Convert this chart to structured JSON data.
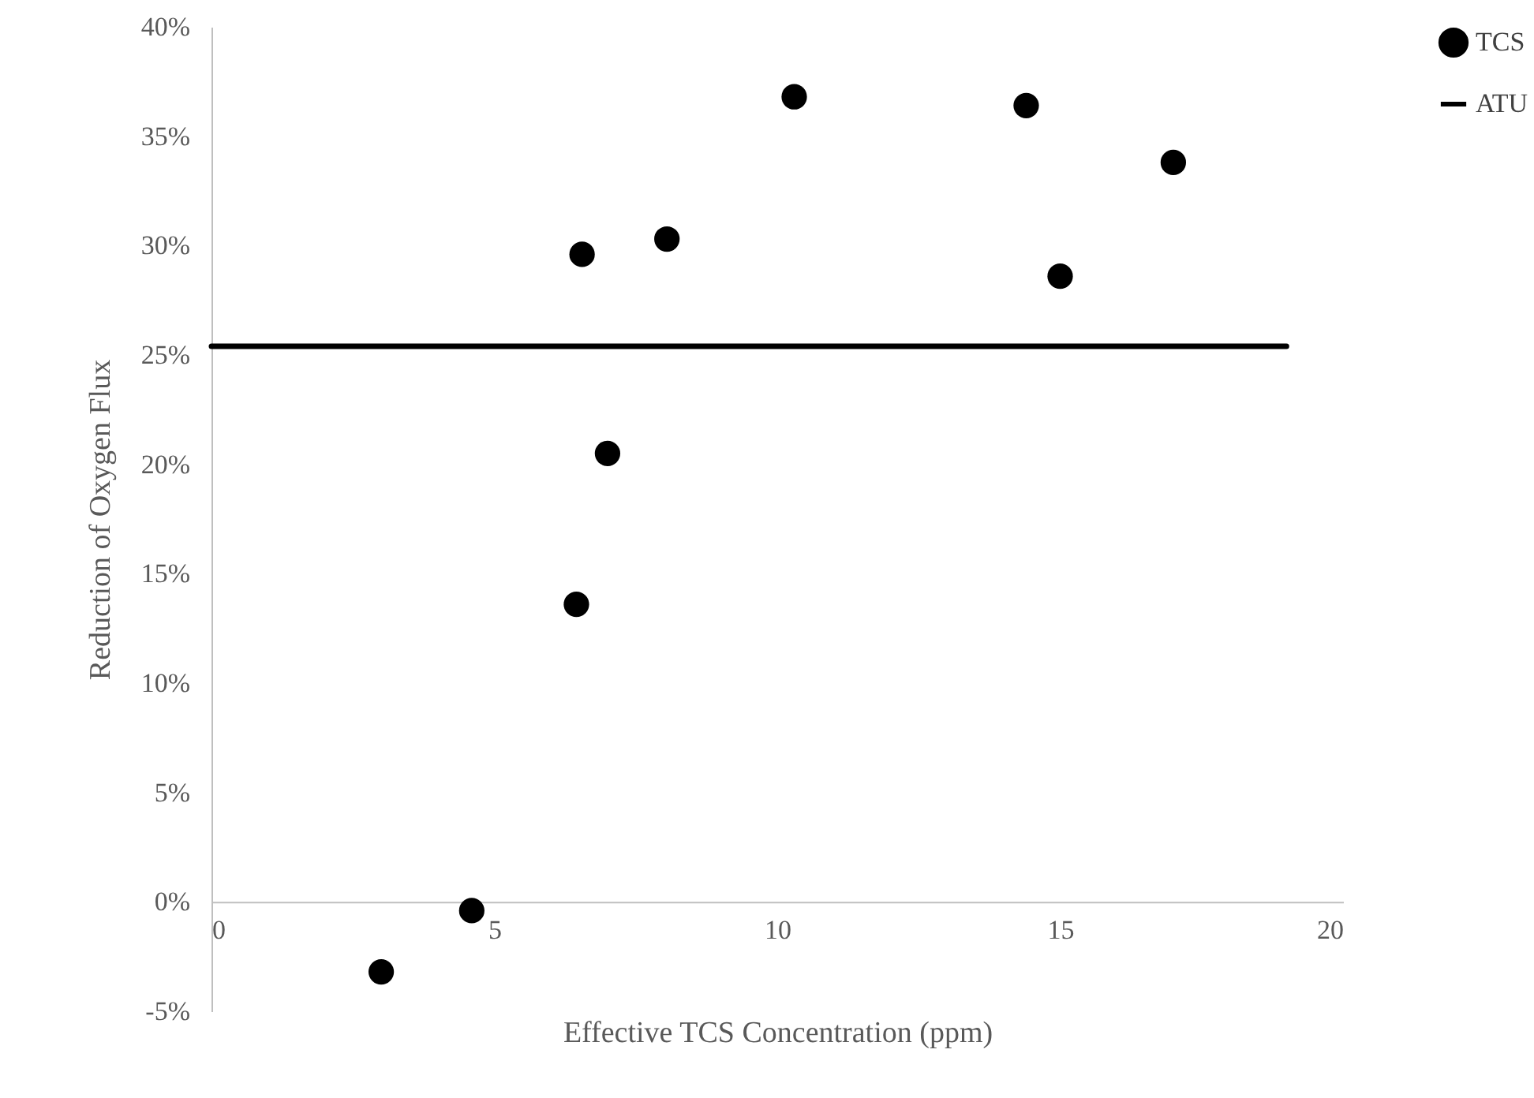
{
  "chart_data": {
    "type": "scatter",
    "xlabel": "Effective TCS Concentration (ppm)",
    "ylabel": "Reduction of Oxygen Flux",
    "xlim": [
      0,
      20
    ],
    "xticks": [
      0,
      5,
      10,
      15,
      20
    ],
    "ylim": [
      -5,
      40
    ],
    "yticks": [
      {
        "value": -5,
        "label": "-5%"
      },
      {
        "value": 0,
        "label": "0%"
      },
      {
        "value": 5,
        "label": "5%"
      },
      {
        "value": 10,
        "label": "10%"
      },
      {
        "value": 15,
        "label": "15%"
      },
      {
        "value": 20,
        "label": "20%"
      },
      {
        "value": 25,
        "label": "25%"
      },
      {
        "value": 30,
        "label": "30%"
      },
      {
        "value": 35,
        "label": "35%"
      },
      {
        "value": 40,
        "label": "40%"
      }
    ],
    "grid": false,
    "legend": "right",
    "series": [
      {
        "name": "TCS",
        "marker": "circle",
        "color": "#000000",
        "x": [
          3.0,
          4.6,
          6.45,
          7.0,
          6.55,
          8.05,
          10.3,
          14.4,
          15.0,
          17.0
        ],
        "values": [
          -3.2,
          -0.4,
          13.6,
          20.5,
          29.6,
          30.3,
          36.8,
          36.4,
          28.6,
          33.8
        ]
      },
      {
        "name": "ATU",
        "type": "line",
        "line_style": "solid",
        "color": "#000000",
        "x": [
          0,
          19
        ],
        "values": [
          25.4,
          25.4
        ]
      }
    ]
  }
}
